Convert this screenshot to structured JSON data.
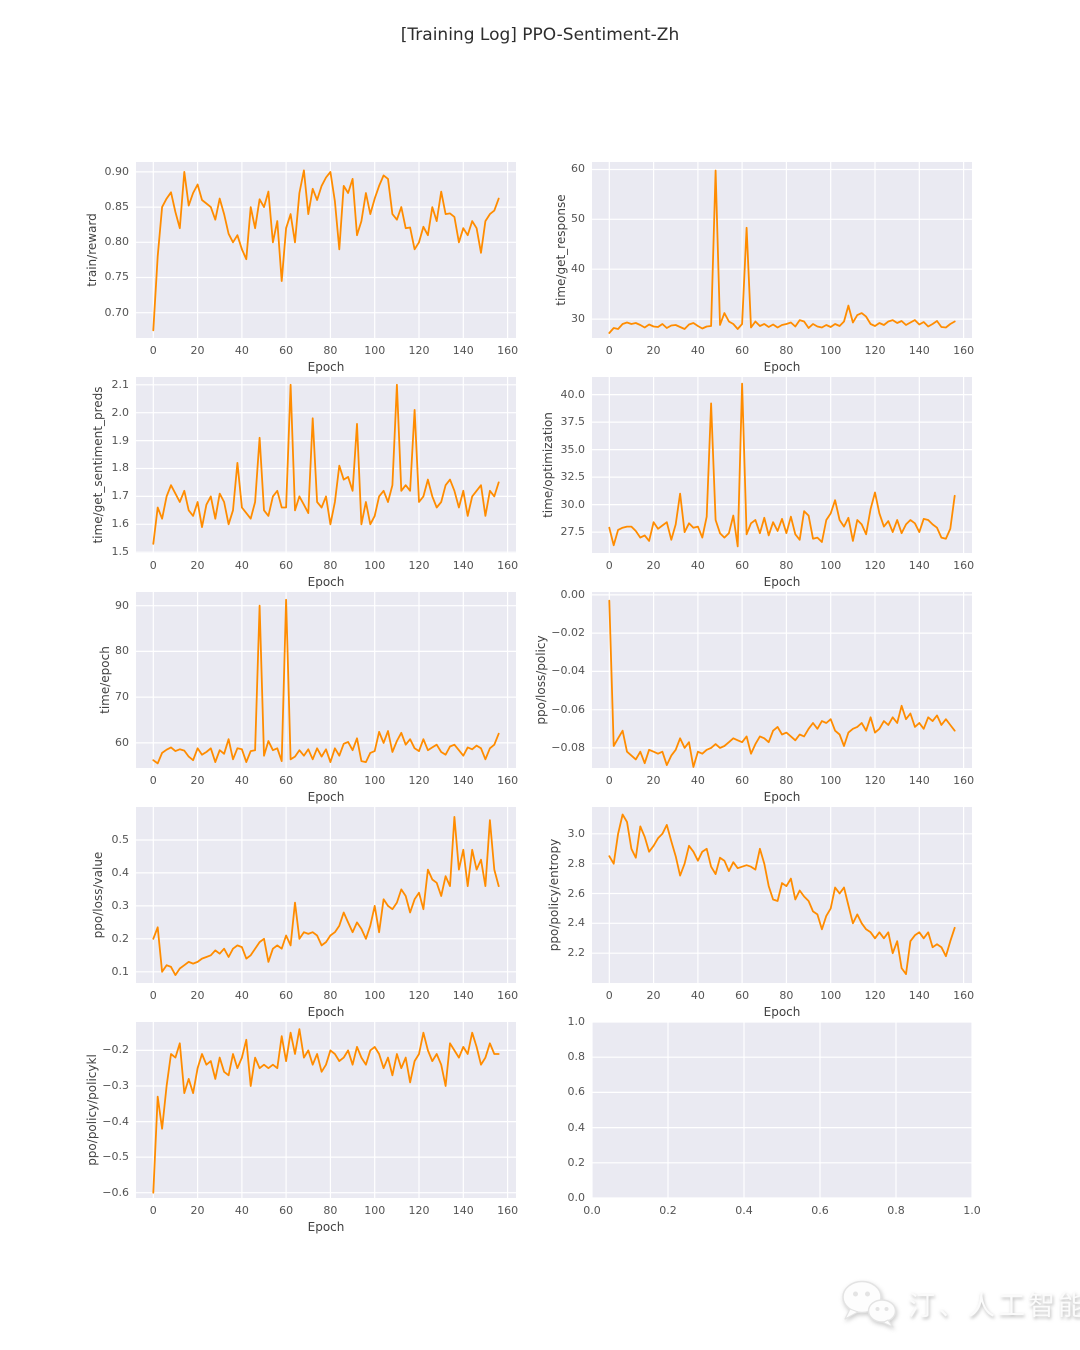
{
  "title": "[Training Log] PPO-Sentiment-Zh",
  "watermark": {
    "icon": "wechat-icon",
    "text": "汀、人工智能"
  },
  "style": {
    "line_color": "#ff8c00",
    "plot_bg": "#eaeaf2",
    "grid_color": "#ffffff",
    "tick_color": "#545454",
    "label_color": "#414141",
    "title_color": "#2d2d2d"
  },
  "chart_data": [
    {
      "type": "line",
      "name": "train-reward",
      "ylabel": "train/reward",
      "xlabel": "Epoch",
      "x_start": 0,
      "x_step": 2,
      "xlim": [
        -7.8,
        163.8
      ],
      "ylim": [
        0.664,
        0.914
      ],
      "grid": true,
      "legend": null,
      "xticks": [
        0,
        20,
        40,
        60,
        80,
        100,
        120,
        140,
        160
      ],
      "xtick_labels": [
        "0",
        "20",
        "40",
        "60",
        "80",
        "100",
        "120",
        "140",
        "160"
      ],
      "yticks": [
        0.7,
        0.75,
        0.8,
        0.85,
        0.9
      ],
      "ytick_labels": [
        "0.70",
        "0.75",
        "0.80",
        "0.85",
        "0.90"
      ],
      "values": [
        0.675,
        0.78,
        0.85,
        0.862,
        0.871,
        0.843,
        0.82,
        0.9,
        0.852,
        0.87,
        0.882,
        0.86,
        0.855,
        0.85,
        0.832,
        0.862,
        0.84,
        0.812,
        0.8,
        0.81,
        0.79,
        0.776,
        0.85,
        0.82,
        0.861,
        0.85,
        0.872,
        0.8,
        0.83,
        0.745,
        0.82,
        0.84,
        0.8,
        0.87,
        0.902,
        0.84,
        0.876,
        0.86,
        0.88,
        0.892,
        0.9,
        0.858,
        0.79,
        0.88,
        0.87,
        0.89,
        0.81,
        0.83,
        0.87,
        0.84,
        0.862,
        0.88,
        0.895,
        0.89,
        0.84,
        0.832,
        0.85,
        0.82,
        0.821,
        0.79,
        0.8,
        0.822,
        0.81,
        0.85,
        0.83,
        0.872,
        0.84,
        0.841,
        0.836,
        0.8,
        0.82,
        0.81,
        0.83,
        0.82,
        0.785,
        0.83,
        0.84,
        0.845,
        0.862
      ]
    },
    {
      "type": "line",
      "name": "time-get-response",
      "ylabel": "time/get_response",
      "xlabel": "Epoch",
      "x_start": 0,
      "x_step": 2,
      "xlim": [
        -7.8,
        163.8
      ],
      "ylim": [
        26.2,
        61.5
      ],
      "grid": true,
      "legend": null,
      "xticks": [
        0,
        20,
        40,
        60,
        80,
        100,
        120,
        140,
        160
      ],
      "xtick_labels": [
        "0",
        "20",
        "40",
        "60",
        "80",
        "100",
        "120",
        "140",
        "160"
      ],
      "yticks": [
        30,
        40,
        50,
        60
      ],
      "ytick_labels": [
        "30",
        "40",
        "50",
        "60"
      ],
      "values": [
        27.2,
        28.2,
        28.0,
        29.0,
        29.3,
        29.0,
        29.2,
        28.8,
        28.3,
        28.9,
        28.5,
        28.4,
        29.0,
        28.2,
        28.7,
        28.8,
        28.4,
        28.0,
        28.9,
        29.2,
        28.6,
        28.1,
        28.5,
        28.6,
        59.8,
        28.8,
        31.2,
        29.5,
        29.0,
        28.0,
        29.0,
        48.3,
        28.3,
        29.5,
        28.6,
        29.0,
        28.4,
        28.9,
        28.3,
        28.8,
        29.0,
        29.3,
        28.5,
        29.8,
        29.5,
        28.2,
        29.0,
        28.5,
        28.3,
        28.8,
        28.4,
        29.0,
        28.6,
        29.5,
        32.7,
        29.3,
        30.8,
        31.2,
        30.5,
        29.0,
        28.6,
        29.2,
        28.8,
        29.5,
        29.8,
        29.2,
        29.6,
        28.8,
        29.3,
        29.8,
        28.9,
        29.4,
        28.5,
        29.0,
        29.6,
        28.4,
        28.3,
        29.0,
        29.5
      ]
    },
    {
      "type": "line",
      "name": "time-get-sentiment-preds",
      "ylabel": "time/get_sentiment_preds",
      "xlabel": "Epoch",
      "x_start": 0,
      "x_step": 2,
      "xlim": [
        -7.8,
        163.8
      ],
      "ylim": [
        1.497,
        2.128
      ],
      "grid": true,
      "legend": null,
      "xticks": [
        0,
        20,
        40,
        60,
        80,
        100,
        120,
        140,
        160
      ],
      "xtick_labels": [
        "0",
        "20",
        "40",
        "60",
        "80",
        "100",
        "120",
        "140",
        "160"
      ],
      "yticks": [
        1.5,
        1.6,
        1.7,
        1.8,
        1.9,
        2.0,
        2.1
      ],
      "ytick_labels": [
        "1.5",
        "1.6",
        "1.7",
        "1.8",
        "1.9",
        "2.0",
        "2.1"
      ],
      "values": [
        1.53,
        1.66,
        1.62,
        1.7,
        1.74,
        1.71,
        1.68,
        1.72,
        1.65,
        1.63,
        1.68,
        1.59,
        1.67,
        1.7,
        1.62,
        1.71,
        1.68,
        1.6,
        1.65,
        1.82,
        1.66,
        1.64,
        1.62,
        1.68,
        1.91,
        1.65,
        1.63,
        1.7,
        1.72,
        1.66,
        1.66,
        2.1,
        1.65,
        1.7,
        1.67,
        1.64,
        1.98,
        1.68,
        1.66,
        1.7,
        1.6,
        1.68,
        1.81,
        1.76,
        1.77,
        1.72,
        1.96,
        1.6,
        1.68,
        1.6,
        1.63,
        1.7,
        1.72,
        1.68,
        1.74,
        2.1,
        1.72,
        1.74,
        1.72,
        2.01,
        1.68,
        1.7,
        1.76,
        1.7,
        1.66,
        1.68,
        1.74,
        1.76,
        1.72,
        1.66,
        1.72,
        1.63,
        1.7,
        1.72,
        1.74,
        1.63,
        1.72,
        1.7,
        1.75
      ]
    },
    {
      "type": "line",
      "name": "time-optimization",
      "ylabel": "time/optimization",
      "xlabel": "Epoch",
      "x_start": 0,
      "x_step": 2,
      "xlim": [
        -7.8,
        163.8
      ],
      "ylim": [
        25.6,
        41.6
      ],
      "grid": true,
      "legend": null,
      "xticks": [
        0,
        20,
        40,
        60,
        80,
        100,
        120,
        140,
        160
      ],
      "xtick_labels": [
        "0",
        "20",
        "40",
        "60",
        "80",
        "100",
        "120",
        "140",
        "160"
      ],
      "yticks": [
        27.5,
        30.0,
        32.5,
        35.0,
        37.5,
        40.0
      ],
      "ytick_labels": [
        "27.5",
        "30.0",
        "32.5",
        "35.0",
        "37.5",
        "40.0"
      ],
      "values": [
        27.9,
        26.3,
        27.7,
        27.9,
        28.0,
        28.0,
        27.6,
        27.0,
        27.2,
        26.7,
        28.4,
        27.8,
        28.1,
        28.4,
        26.8,
        28.2,
        31.0,
        27.5,
        28.3,
        27.9,
        28.0,
        27.0,
        28.9,
        39.2,
        28.6,
        27.4,
        27.0,
        27.4,
        29.0,
        26.2,
        41.0,
        27.3,
        28.3,
        28.6,
        27.4,
        28.8,
        27.2,
        28.4,
        27.6,
        28.7,
        27.4,
        28.9,
        27.3,
        26.8,
        29.4,
        29.0,
        26.9,
        27.0,
        26.6,
        28.6,
        29.2,
        30.4,
        28.6,
        28.0,
        28.8,
        26.7,
        28.6,
        28.2,
        27.3,
        29.6,
        31.1,
        29.2,
        28.0,
        28.5,
        27.5,
        28.6,
        27.4,
        28.2,
        28.6,
        28.3,
        27.5,
        28.7,
        28.6,
        28.2,
        27.9,
        27.0,
        26.9,
        27.8,
        30.8
      ]
    },
    {
      "type": "line",
      "name": "time-epoch",
      "ylabel": "time/epoch",
      "xlabel": "Epoch",
      "x_start": 0,
      "x_step": 2,
      "xlim": [
        -7.8,
        163.8
      ],
      "ylim": [
        54.5,
        93.0
      ],
      "grid": true,
      "legend": null,
      "xticks": [
        0,
        20,
        40,
        60,
        80,
        100,
        120,
        140,
        160
      ],
      "xtick_labels": [
        "0",
        "20",
        "40",
        "60",
        "80",
        "100",
        "120",
        "140",
        "160"
      ],
      "yticks": [
        60,
        70,
        80,
        90
      ],
      "ytick_labels": [
        "60",
        "70",
        "80",
        "90"
      ],
      "values": [
        56.2,
        55.5,
        57.8,
        58.5,
        59.0,
        58.2,
        58.6,
        58.3,
        57.0,
        56.2,
        58.8,
        57.4,
        58.0,
        58.8,
        55.8,
        58.4,
        57.6,
        60.8,
        56.4,
        58.8,
        58.6,
        55.8,
        58.2,
        58.4,
        90.0,
        57.2,
        60.4,
        58.4,
        58.8,
        56.0,
        91.3,
        56.4,
        57.0,
        58.4,
        57.2,
        58.6,
        56.4,
        58.8,
        57.0,
        58.6,
        55.8,
        58.8,
        57.2,
        59.8,
        60.2,
        58.4,
        61.0,
        56.0,
        55.8,
        57.8,
        58.2,
        62.4,
        60.0,
        62.6,
        58.0,
        60.4,
        62.2,
        59.6,
        60.8,
        58.8,
        58.2,
        60.8,
        58.4,
        59.0,
        59.6,
        58.0,
        57.4,
        59.2,
        59.6,
        58.4,
        57.2,
        59.0,
        58.6,
        59.4,
        58.8,
        56.4,
        58.8,
        59.6,
        62.0
      ]
    },
    {
      "type": "line",
      "name": "ppo-loss-policy",
      "ylabel": "ppo/loss/policy",
      "xlabel": "Epoch",
      "x_start": 0,
      "x_step": 2,
      "xlim": [
        -7.8,
        163.8
      ],
      "ylim": [
        -0.0905,
        0.0015
      ],
      "grid": true,
      "legend": null,
      "xticks": [
        0,
        20,
        40,
        60,
        80,
        100,
        120,
        140,
        160
      ],
      "xtick_labels": [
        "0",
        "20",
        "40",
        "60",
        "80",
        "100",
        "120",
        "140",
        "160"
      ],
      "yticks": [
        0.0,
        -0.02,
        -0.04,
        -0.06,
        -0.08
      ],
      "ytick_labels": [
        "0.00",
        "−0.02",
        "−0.04",
        "−0.06",
        "−0.08"
      ],
      "values": [
        -0.003,
        -0.079,
        -0.075,
        -0.071,
        -0.082,
        -0.084,
        -0.086,
        -0.082,
        -0.088,
        -0.081,
        -0.082,
        -0.083,
        -0.082,
        -0.089,
        -0.084,
        -0.081,
        -0.075,
        -0.08,
        -0.077,
        -0.09,
        -0.082,
        -0.083,
        -0.081,
        -0.08,
        -0.078,
        -0.08,
        -0.079,
        -0.077,
        -0.075,
        -0.076,
        -0.077,
        -0.074,
        -0.083,
        -0.078,
        -0.074,
        -0.075,
        -0.077,
        -0.071,
        -0.069,
        -0.073,
        -0.072,
        -0.074,
        -0.076,
        -0.073,
        -0.074,
        -0.07,
        -0.067,
        -0.07,
        -0.066,
        -0.067,
        -0.065,
        -0.071,
        -0.073,
        -0.079,
        -0.072,
        -0.07,
        -0.069,
        -0.067,
        -0.071,
        -0.064,
        -0.072,
        -0.07,
        -0.066,
        -0.068,
        -0.064,
        -0.067,
        -0.058,
        -0.065,
        -0.062,
        -0.069,
        -0.067,
        -0.07,
        -0.064,
        -0.066,
        -0.063,
        -0.068,
        -0.065,
        -0.068,
        -0.071
      ]
    },
    {
      "type": "line",
      "name": "ppo-loss-value",
      "ylabel": "ppo/loss/value",
      "xlabel": "Epoch",
      "x_start": 0,
      "x_step": 2,
      "xlim": [
        -7.8,
        163.8
      ],
      "ylim": [
        0.066,
        0.6
      ],
      "grid": true,
      "legend": null,
      "xticks": [
        0,
        20,
        40,
        60,
        80,
        100,
        120,
        140,
        160
      ],
      "xtick_labels": [
        "0",
        "20",
        "40",
        "60",
        "80",
        "100",
        "120",
        "140",
        "160"
      ],
      "yticks": [
        0.1,
        0.2,
        0.3,
        0.4,
        0.5
      ],
      "ytick_labels": [
        "0.1",
        "0.2",
        "0.3",
        "0.4",
        "0.5"
      ],
      "values": [
        0.2,
        0.235,
        0.1,
        0.12,
        0.115,
        0.09,
        0.11,
        0.12,
        0.13,
        0.125,
        0.13,
        0.14,
        0.145,
        0.15,
        0.165,
        0.155,
        0.17,
        0.145,
        0.17,
        0.18,
        0.175,
        0.14,
        0.15,
        0.17,
        0.19,
        0.2,
        0.13,
        0.17,
        0.18,
        0.17,
        0.21,
        0.18,
        0.31,
        0.2,
        0.22,
        0.215,
        0.22,
        0.21,
        0.18,
        0.19,
        0.21,
        0.22,
        0.24,
        0.28,
        0.25,
        0.22,
        0.25,
        0.23,
        0.2,
        0.24,
        0.3,
        0.22,
        0.32,
        0.3,
        0.29,
        0.31,
        0.35,
        0.33,
        0.28,
        0.32,
        0.34,
        0.29,
        0.41,
        0.38,
        0.37,
        0.33,
        0.39,
        0.36,
        0.57,
        0.41,
        0.47,
        0.36,
        0.47,
        0.41,
        0.44,
        0.36,
        0.56,
        0.41,
        0.36
      ]
    },
    {
      "type": "line",
      "name": "ppo-policy-entropy",
      "ylabel": "ppo/policy/entropy",
      "xlabel": "Epoch",
      "x_start": 0,
      "x_step": 2,
      "xlim": [
        -7.8,
        163.8
      ],
      "ylim": [
        2.0,
        3.18
      ],
      "grid": true,
      "legend": null,
      "xticks": [
        0,
        20,
        40,
        60,
        80,
        100,
        120,
        140,
        160
      ],
      "xtick_labels": [
        "0",
        "20",
        "40",
        "60",
        "80",
        "100",
        "120",
        "140",
        "160"
      ],
      "yticks": [
        2.2,
        2.4,
        2.6,
        2.8,
        3.0
      ],
      "ytick_labels": [
        "2.2",
        "2.4",
        "2.6",
        "2.8",
        "3.0"
      ],
      "values": [
        2.85,
        2.8,
        3.0,
        3.13,
        3.08,
        2.9,
        2.84,
        3.05,
        2.98,
        2.88,
        2.92,
        2.97,
        3.0,
        3.06,
        2.95,
        2.85,
        2.72,
        2.8,
        2.92,
        2.88,
        2.82,
        2.88,
        2.9,
        2.78,
        2.73,
        2.84,
        2.82,
        2.75,
        2.81,
        2.77,
        2.78,
        2.79,
        2.78,
        2.76,
        2.9,
        2.8,
        2.65,
        2.56,
        2.55,
        2.67,
        2.65,
        2.7,
        2.56,
        2.62,
        2.58,
        2.55,
        2.48,
        2.46,
        2.36,
        2.45,
        2.5,
        2.64,
        2.6,
        2.64,
        2.52,
        2.4,
        2.46,
        2.4,
        2.36,
        2.34,
        2.3,
        2.34,
        2.3,
        2.34,
        2.2,
        2.28,
        2.1,
        2.06,
        2.28,
        2.32,
        2.34,
        2.3,
        2.34,
        2.24,
        2.26,
        2.24,
        2.18,
        2.28,
        2.37
      ]
    },
    {
      "type": "line",
      "name": "ppo-policy-policykl",
      "ylabel": "ppo/policy/policykl",
      "xlabel": "Epoch",
      "x_start": 0,
      "x_step": 2,
      "xlim": [
        -7.8,
        163.8
      ],
      "ylim": [
        -0.615,
        -0.12
      ],
      "grid": true,
      "legend": null,
      "xticks": [
        0,
        20,
        40,
        60,
        80,
        100,
        120,
        140,
        160
      ],
      "xtick_labels": [
        "0",
        "20",
        "40",
        "60",
        "80",
        "100",
        "120",
        "140",
        "160"
      ],
      "yticks": [
        -0.2,
        -0.3,
        -0.4,
        -0.5,
        -0.6
      ],
      "ytick_labels": [
        "−0.2",
        "−0.3",
        "−0.4",
        "−0.5",
        "−0.6"
      ],
      "values": [
        -0.6,
        -0.33,
        -0.42,
        -0.3,
        -0.21,
        -0.22,
        -0.18,
        -0.32,
        -0.28,
        -0.32,
        -0.25,
        -0.21,
        -0.24,
        -0.23,
        -0.28,
        -0.22,
        -0.26,
        -0.27,
        -0.21,
        -0.25,
        -0.22,
        -0.17,
        -0.3,
        -0.22,
        -0.25,
        -0.24,
        -0.25,
        -0.24,
        -0.25,
        -0.16,
        -0.23,
        -0.15,
        -0.21,
        -0.14,
        -0.22,
        -0.2,
        -0.24,
        -0.21,
        -0.26,
        -0.24,
        -0.2,
        -0.21,
        -0.23,
        -0.22,
        -0.2,
        -0.24,
        -0.19,
        -0.22,
        -0.24,
        -0.2,
        -0.19,
        -0.21,
        -0.25,
        -0.22,
        -0.27,
        -0.21,
        -0.25,
        -0.22,
        -0.29,
        -0.23,
        -0.21,
        -0.15,
        -0.2,
        -0.23,
        -0.21,
        -0.24,
        -0.3,
        -0.18,
        -0.2,
        -0.22,
        -0.19,
        -0.21,
        -0.15,
        -0.19,
        -0.24,
        -0.22,
        -0.18,
        -0.21,
        -0.21
      ]
    },
    {
      "type": "line",
      "name": "empty-axes",
      "ylabel": null,
      "xlabel": null,
      "x_start": 0,
      "x_step": 1,
      "xlim": [
        0,
        1
      ],
      "ylim": [
        0,
        1
      ],
      "grid": true,
      "legend": null,
      "xticks": [
        0,
        0.2,
        0.4,
        0.6,
        0.8,
        1.0
      ],
      "xtick_labels": [
        "0.0",
        "0.2",
        "0.4",
        "0.6",
        "0.8",
        "1.0"
      ],
      "yticks": [
        0,
        0.2,
        0.4,
        0.6,
        0.8,
        1.0
      ],
      "ytick_labels": [
        "0.0",
        "0.2",
        "0.4",
        "0.6",
        "0.8",
        "1.0"
      ],
      "values": []
    }
  ]
}
